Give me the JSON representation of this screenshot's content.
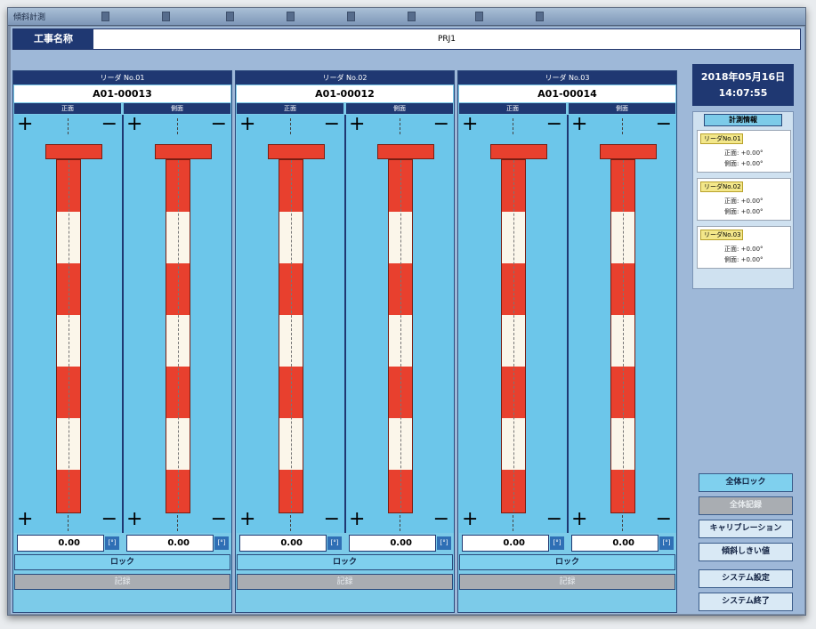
{
  "window": {
    "title": "傾斜計測"
  },
  "project": {
    "label": "工事名称",
    "value": "PRJ1"
  },
  "readers": [
    {
      "header": "リーダ No.01",
      "code": "A01-00013",
      "front_label": "正面",
      "side_label": "側面",
      "front_value": "0.00",
      "side_value": "0.00",
      "unit": "[°]",
      "lock_label": "ロック",
      "record_label": "記録"
    },
    {
      "header": "リーダ No.02",
      "code": "A01-00012",
      "front_label": "正面",
      "side_label": "側面",
      "front_value": "0.00",
      "side_value": "0.00",
      "unit": "[°]",
      "lock_label": "ロック",
      "record_label": "記録"
    },
    {
      "header": "リーダ No.03",
      "code": "A01-00014",
      "front_label": "正面",
      "side_label": "側面",
      "front_value": "0.00",
      "side_value": "0.00",
      "unit": "[°]",
      "lock_label": "ロック",
      "record_label": "記録"
    }
  ],
  "gauge_symbols": {
    "plus": "+",
    "minus": "−"
  },
  "datetime": {
    "date": "2018年05月16日",
    "time": "14:07:55"
  },
  "measure_info": {
    "title": "計測情報",
    "items": [
      {
        "name": "リーダNo.01",
        "front": "正面: +0.00°",
        "side": "側面: +0.00°"
      },
      {
        "name": "リーダNo.02",
        "front": "正面: +0.00°",
        "side": "側面: +0.00°"
      },
      {
        "name": "リーダNo.03",
        "front": "正面: +0.00°",
        "side": "側面: +0.00°"
      }
    ]
  },
  "buttons": {
    "lock_all": "全体ロック",
    "record_all": "全体記録",
    "calibration": "キャリブレーション",
    "threshold": "傾斜しきい値",
    "system_settings": "システム設定",
    "system_exit": "システム終了"
  },
  "colors": {
    "navy": "#1f3872",
    "sky": "#7ccbe9",
    "pole_red": "#e8402e",
    "pole_white": "#fbf6ea"
  }
}
